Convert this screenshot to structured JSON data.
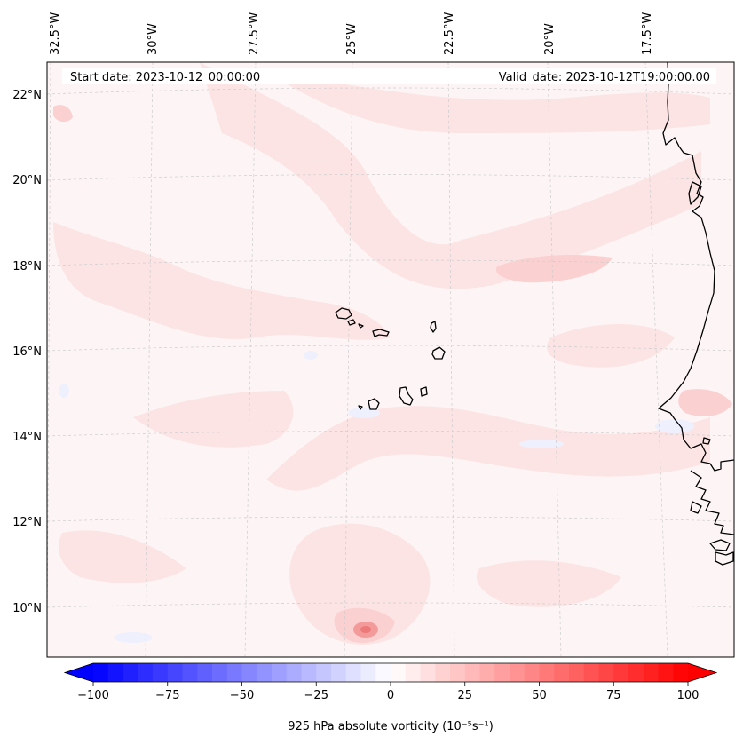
{
  "map": {
    "header": {
      "start": "Start date: 2023-10-12_00:00:00",
      "valid": "Valid_date: 2023-10-12T19:00:00.00"
    },
    "lon_labels": [
      "32.5°W",
      "30°W",
      "27.5°W",
      "25°W",
      "22.5°W",
      "20°W",
      "17.5°W"
    ],
    "lat_labels": [
      "22°N",
      "20°N",
      "18°N",
      "16°N",
      "14°N",
      "12°N",
      "10°N"
    ],
    "field_colors": {
      "background": "#fdf5f5",
      "light_red": "#fde4e4",
      "mid_red": "#fbd0d0",
      "strong_red": "#f39a9a",
      "light_blue": "#eef0fe"
    },
    "coast_color": "#000000"
  },
  "colorbar": {
    "ticks": [
      "−100",
      "−75",
      "−50",
      "−25",
      "0",
      "25",
      "50",
      "75",
      "100"
    ],
    "tick_values": [
      -100,
      -75,
      -50,
      -25,
      0,
      25,
      50,
      75,
      100
    ],
    "min": -100,
    "max": 100,
    "levels": 40,
    "label": "925 hPa absolute vorticity (10⁻⁵s⁻¹)",
    "neg_color": "#0000ff",
    "pos_color": "#ff0000"
  }
}
